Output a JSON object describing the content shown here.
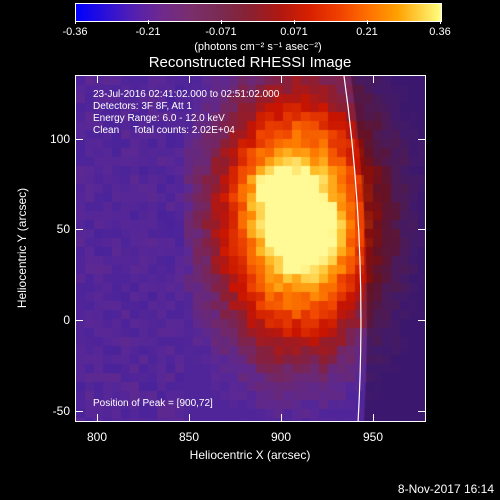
{
  "colorbar": {
    "ticks": [
      "-0.36",
      "-0.21",
      "-0.071",
      "0.071",
      "0.21",
      "0.36"
    ],
    "units": "(photons cm⁻² s⁻¹ asec⁻²)"
  },
  "title": "Reconstructed RHESSI Image",
  "info": {
    "time_range": "23-Jul-2016 02:41:02.000 to 02:51:02.000",
    "detectors": "Detectors: 3F 8F, Att 1",
    "energy": "Energy Range: 6.0 - 12.0 keV",
    "method": "Clean     Total counts: 2.02E+04",
    "peak": "Position of Peak = [900,72]"
  },
  "axes": {
    "x_title": "Heliocentric X (arcsec)",
    "y_title": "Heliocentric Y (arcsec)",
    "x_ticks": [
      "800",
      "850",
      "900",
      "950"
    ],
    "y_ticks": [
      "100",
      "50",
      "0",
      "-50"
    ],
    "x_range": [
      785,
      980
    ],
    "y_range": [
      -55,
      135
    ]
  },
  "peak_position": [
    900,
    72
  ],
  "timestamp": "8-Nov-2017 16:14"
}
